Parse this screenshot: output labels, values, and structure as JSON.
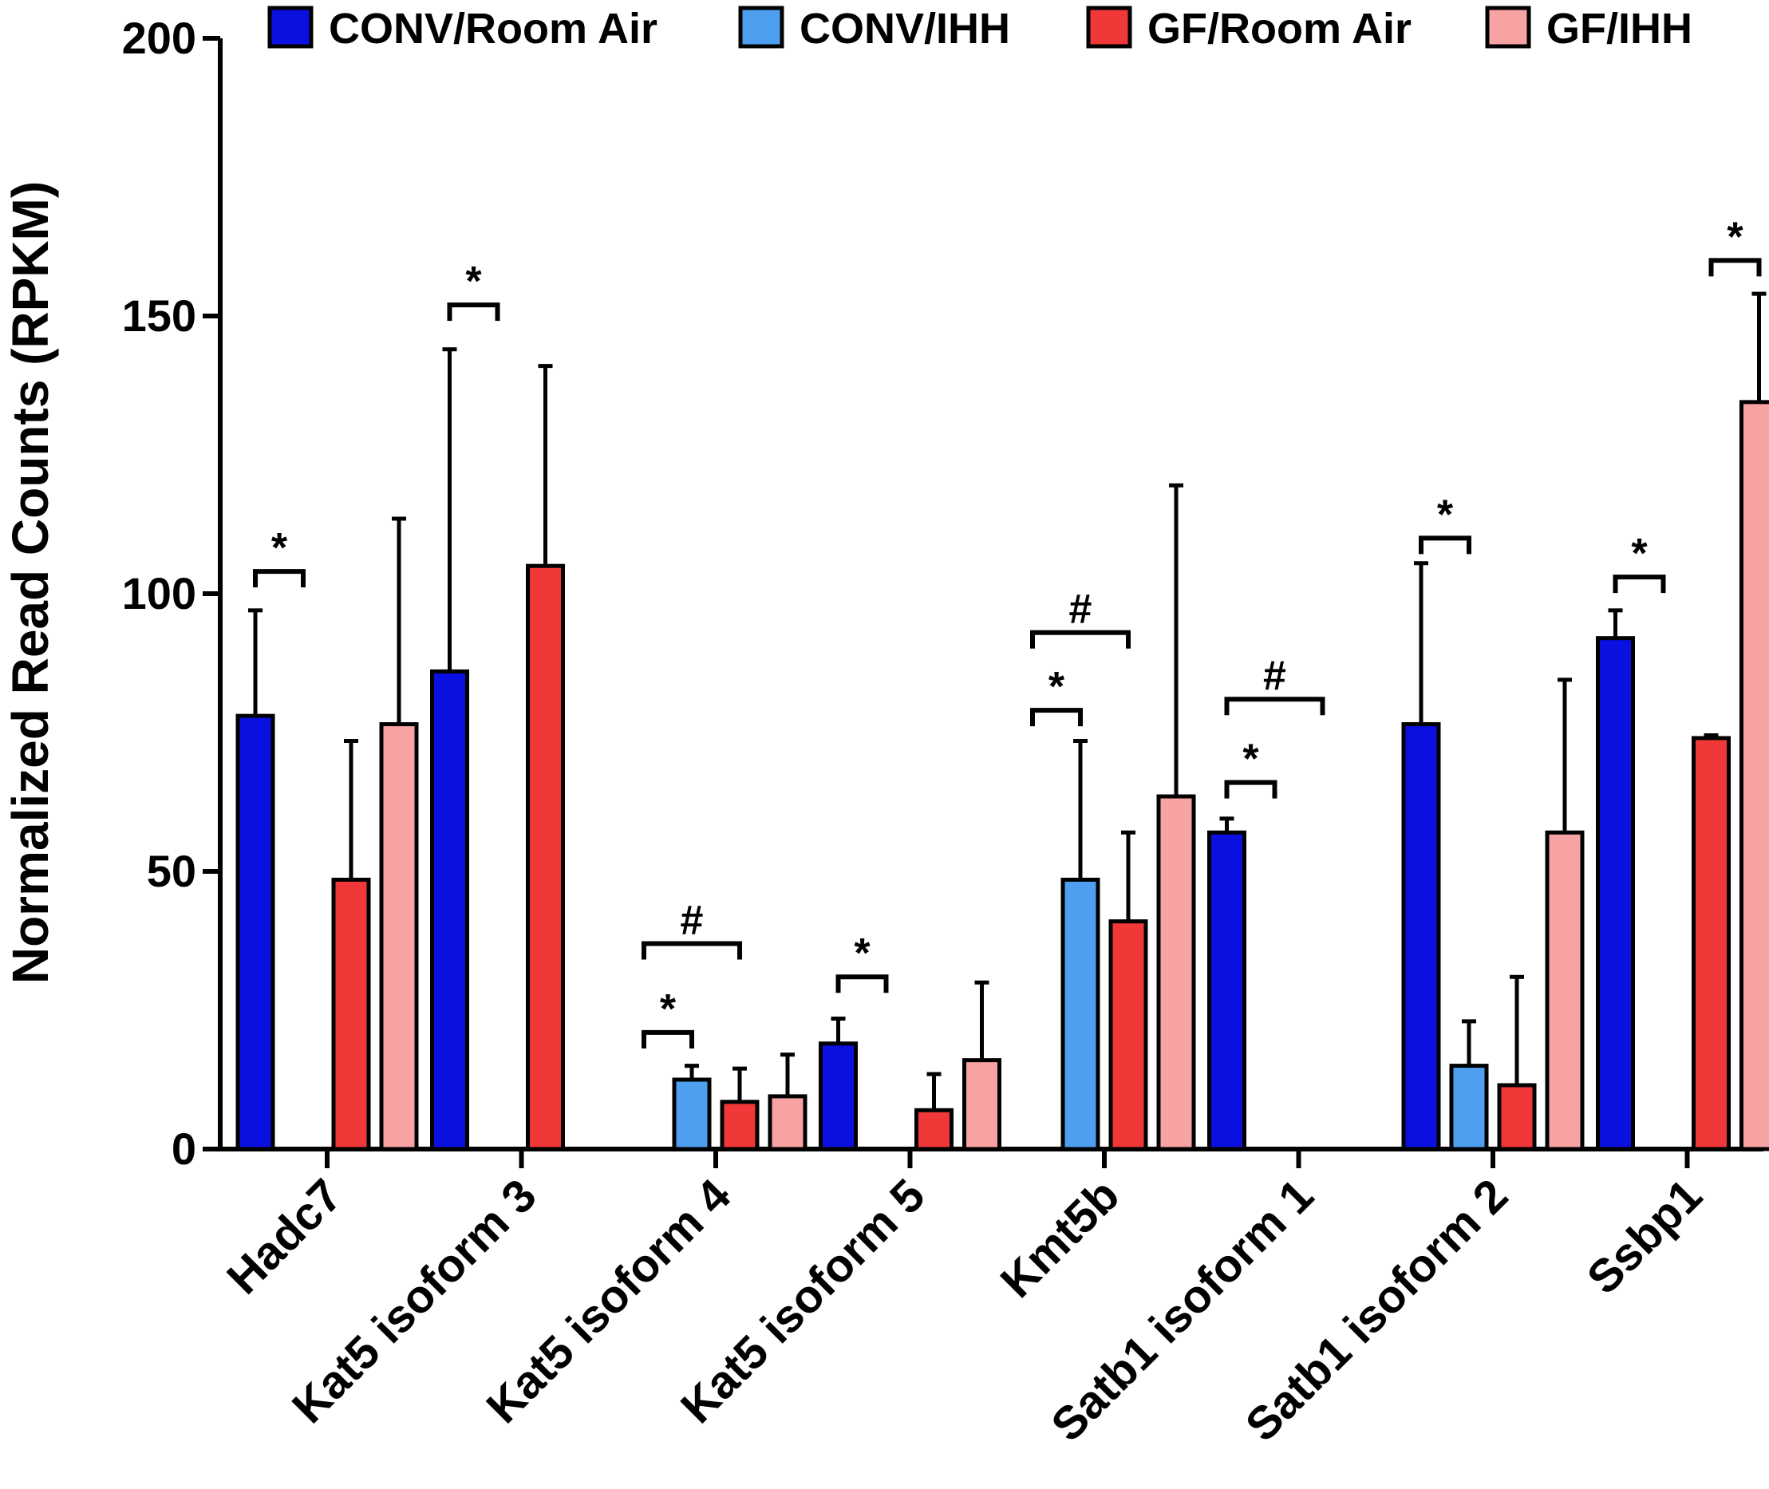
{
  "chart_data": {
    "type": "bar",
    "title": "",
    "xlabel": "",
    "ylabel": "Normalized Read Counts (RPKM)",
    "ylim": [
      0,
      200
    ],
    "yticks": [
      0,
      50,
      100,
      150,
      200
    ],
    "legend_position": "top",
    "categories": [
      "Hadc7",
      "Kat5 isoform 3",
      "Kat5 isoform 4",
      "Kat5 isoform 5",
      "Kmt5b",
      "Satb1 isoform 1",
      "Satb1 isoform 2",
      "Ssbp1"
    ],
    "series": [
      {
        "name": "CONV/Room Air",
        "color": "#0a10e0",
        "values": [
          78,
          86,
          0,
          19,
          0,
          57,
          76.5,
          92
        ],
        "errors": [
          19,
          58,
          0,
          4.5,
          0,
          2.5,
          29,
          5
        ]
      },
      {
        "name": "CONV/IHH",
        "color": "#4e9ff0",
        "values": [
          0,
          0,
          12.5,
          0,
          48.5,
          0,
          15,
          0
        ],
        "errors": [
          0,
          0,
          2.5,
          0,
          25,
          0,
          8,
          0
        ]
      },
      {
        "name": "GF/Room Air",
        "color": "#f03838",
        "values": [
          48.5,
          105,
          8.5,
          7,
          41,
          0,
          11.5,
          74
        ],
        "errors": [
          25,
          36,
          6,
          6.5,
          16,
          0,
          19.5,
          0.5
        ]
      },
      {
        "name": "GF/IHH",
        "color": "#f7a3a3",
        "values": [
          76.5,
          0,
          9.5,
          16,
          63.5,
          0,
          57,
          134.5
        ],
        "errors": [
          37,
          0,
          7.5,
          14,
          56,
          0,
          27.5,
          19.5
        ]
      }
    ],
    "annotations": [
      {
        "category": "Hadc7",
        "symbol": "*",
        "from_series": 0,
        "to_series": 1,
        "y": 104
      },
      {
        "category": "Kat5 isoform 3",
        "symbol": "*",
        "from_series": 0,
        "to_series": 1,
        "y": 152
      },
      {
        "category": "Kat5 isoform 4",
        "symbol": "*",
        "from_series": 0,
        "to_series": 1,
        "y": 21
      },
      {
        "category": "Kat5 isoform 4",
        "symbol": "#",
        "from_series": 0,
        "to_series": 2,
        "y": 37
      },
      {
        "category": "Kat5 isoform 5",
        "symbol": "*",
        "from_series": 0,
        "to_series": 1,
        "y": 31
      },
      {
        "category": "Kmt5b",
        "symbol": "*",
        "from_series": 0,
        "to_series": 1,
        "y": 79
      },
      {
        "category": "Kmt5b",
        "symbol": "#",
        "from_series": 0,
        "to_series": 2,
        "y": 93
      },
      {
        "category": "Satb1 isoform 1",
        "symbol": "*",
        "from_series": 0,
        "to_series": 1,
        "y": 66
      },
      {
        "category": "Satb1 isoform 1",
        "symbol": "#",
        "from_series": 0,
        "to_series": 2,
        "y": 81
      },
      {
        "category": "Satb1 isoform 2",
        "symbol": "*",
        "from_series": 0,
        "to_series": 1,
        "y": 110
      },
      {
        "category": "Satb1 isoform 2",
        "symbol": "*",
        "from_series": 0,
        "to_series": 1,
        "y": 0,
        "skip": true
      },
      {
        "category": "Ssbp1",
        "symbol": "*",
        "from_series": 0,
        "to_series": 1,
        "y": 103
      },
      {
        "category": "Ssbp1",
        "symbol": "*",
        "from_series": 2,
        "to_series": 3,
        "y": 160
      }
    ]
  }
}
